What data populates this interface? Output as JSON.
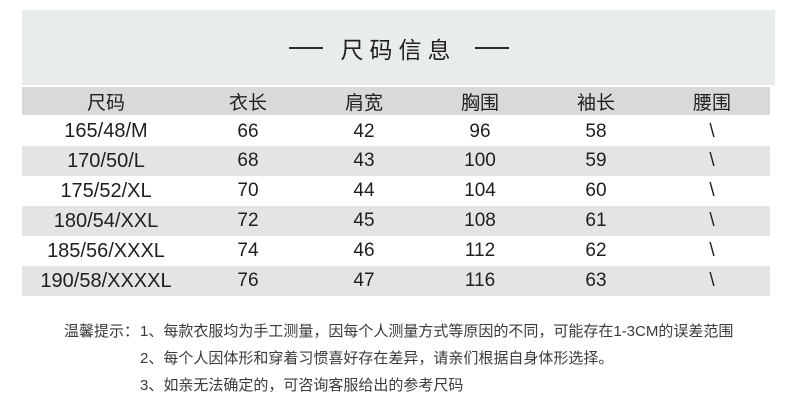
{
  "title": "尺码信息",
  "table": {
    "headers": [
      "尺码",
      "衣长",
      "肩宽",
      "胸围",
      "袖长",
      "腰围"
    ],
    "rows": [
      [
        "165/48/M",
        "66",
        "42",
        "96",
        "58",
        "\\"
      ],
      [
        "170/50/L",
        "68",
        "43",
        "100",
        "59",
        "\\"
      ],
      [
        "175/52/XL",
        "70",
        "44",
        "104",
        "60",
        "\\"
      ],
      [
        "180/54/XXL",
        "72",
        "45",
        "108",
        "61",
        "\\"
      ],
      [
        "185/56/XXXL",
        "74",
        "46",
        "112",
        "62",
        "\\"
      ],
      [
        "190/58/XXXXL",
        "76",
        "47",
        "116",
        "63",
        "\\"
      ]
    ]
  },
  "notes": {
    "label": "温馨提示：",
    "items": [
      "1、每款衣服均为手工测量，因每个人测量方式等原因的不同，可能存在1-3CM的误差范围",
      "2、每个人因体形和穿着习惯喜好存在差异，请亲们根据自身体形选择。",
      "3、如亲无法确定的，可咨询客服给出的参考尺码"
    ]
  },
  "colors": {
    "title_bg": "#e9ede9",
    "header_bg": "#d9d9d9",
    "stripe_bg": "#e4e4e4",
    "text": "#222222",
    "note_text": "#3a3a3a"
  }
}
